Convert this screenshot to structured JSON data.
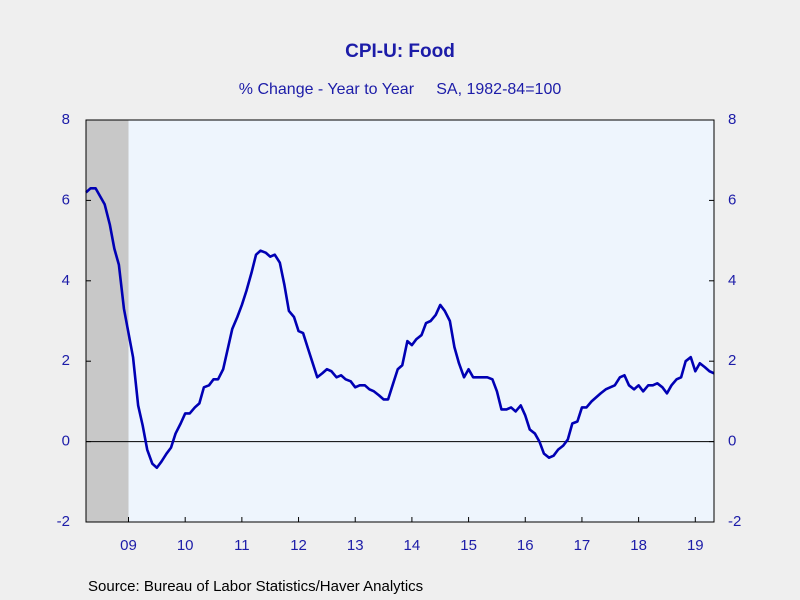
{
  "chart_data": {
    "type": "line",
    "title": "CPI-U: Food",
    "subtitle": "% Change - Year to Year     SA, 1982-84=100",
    "source": "Source:  Bureau of Labor Statistics/Haver Analytics",
    "x": [
      2008.75,
      2008.83,
      2008.92,
      2009,
      2009.08,
      2009.17,
      2009.25,
      2009.33,
      2009.42,
      2009.5,
      2009.58,
      2009.67,
      2009.75,
      2009.83,
      2009.92,
      2010,
      2010.08,
      2010.17,
      2010.25,
      2010.33,
      2010.42,
      2010.5,
      2010.58,
      2010.67,
      2010.75,
      2010.83,
      2010.92,
      2011,
      2011.08,
      2011.17,
      2011.25,
      2011.33,
      2011.42,
      2011.5,
      2011.58,
      2011.67,
      2011.75,
      2011.83,
      2011.92,
      2012,
      2012.08,
      2012.17,
      2012.25,
      2012.33,
      2012.42,
      2012.5,
      2012.58,
      2012.67,
      2012.75,
      2012.83,
      2012.92,
      2013,
      2013.08,
      2013.17,
      2013.25,
      2013.33,
      2013.42,
      2013.5,
      2013.58,
      2013.67,
      2013.75,
      2013.83,
      2013.92,
      2014,
      2014.08,
      2014.17,
      2014.25,
      2014.33,
      2014.42,
      2014.5,
      2014.58,
      2014.67,
      2014.75,
      2014.83,
      2014.92,
      2015,
      2015.08,
      2015.17,
      2015.25,
      2015.33,
      2015.42,
      2015.5,
      2015.58,
      2015.67,
      2015.75,
      2015.83,
      2015.92,
      2016,
      2016.08,
      2016.17,
      2016.25,
      2016.33,
      2016.42,
      2016.5,
      2016.58,
      2016.67,
      2016.75,
      2016.83,
      2016.92,
      2017,
      2017.08,
      2017.17,
      2017.25,
      2017.33,
      2017.42,
      2017.5,
      2017.58,
      2017.67,
      2017.75,
      2017.83,
      2017.92,
      2018,
      2018.08,
      2018.17,
      2018.25,
      2018.33,
      2018.42,
      2018.5,
      2018.58,
      2018.67,
      2018.75,
      2018.83,
      2018.92,
      2019,
      2019.08,
      2019.17,
      2019.25,
      2019.33,
      2019.42,
      2019.5,
      2019.58,
      2019.67,
      2019.75,
      2019.83
    ],
    "series": [
      {
        "color": "#0000b4",
        "values": [
          6.2,
          6.3,
          6.3,
          6.1,
          5.9,
          5.4,
          4.8,
          4.4,
          3.3,
          2.7,
          2.1,
          0.9,
          0.4,
          -0.2,
          -0.55,
          -0.65,
          -0.5,
          -0.3,
          -0.15,
          0.2,
          0.45,
          0.7,
          0.7,
          0.85,
          0.95,
          1.35,
          1.4,
          1.55,
          1.55,
          1.8,
          2.3,
          2.8,
          3.1,
          3.4,
          3.75,
          4.2,
          4.65,
          4.75,
          4.7,
          4.6,
          4.65,
          4.45,
          3.9,
          3.25,
          3.1,
          2.75,
          2.7,
          2.3,
          1.95,
          1.6,
          1.7,
          1.8,
          1.75,
          1.6,
          1.65,
          1.55,
          1.5,
          1.35,
          1.4,
          1.4,
          1.3,
          1.25,
          1.15,
          1.05,
          1.05,
          1.45,
          1.8,
          1.9,
          2.5,
          2.4,
          2.55,
          2.65,
          2.95,
          3.0,
          3.15,
          3.4,
          3.25,
          3.0,
          2.35,
          1.95,
          1.6,
          1.8,
          1.6,
          1.6,
          1.6,
          1.6,
          1.55,
          1.25,
          0.8,
          0.8,
          0.85,
          0.75,
          0.9,
          0.65,
          0.3,
          0.2,
          0.0,
          -0.3,
          -0.4,
          -0.35,
          -0.2,
          -0.1,
          0.05,
          0.45,
          0.5,
          0.85,
          0.85,
          1.0,
          1.1,
          1.2,
          1.3,
          1.35,
          1.4,
          1.6,
          1.65,
          1.4,
          1.3,
          1.4,
          1.25,
          1.4,
          1.4,
          1.45,
          1.35,
          1.2,
          1.4,
          1.55,
          1.6,
          2.0,
          2.1,
          1.75,
          1.95,
          1.85,
          1.75,
          1.7
        ]
      }
    ],
    "xlim": [
      2008.75,
      2019.83
    ],
    "xticks": [
      {
        "value": 2009.5,
        "label": "09"
      },
      {
        "value": 2010.5,
        "label": "10"
      },
      {
        "value": 2011.5,
        "label": "11"
      },
      {
        "value": 2012.5,
        "label": "12"
      },
      {
        "value": 2013.5,
        "label": "13"
      },
      {
        "value": 2014.5,
        "label": "14"
      },
      {
        "value": 2015.5,
        "label": "15"
      },
      {
        "value": 2016.5,
        "label": "16"
      },
      {
        "value": 2017.5,
        "label": "17"
      },
      {
        "value": 2018.5,
        "label": "18"
      },
      {
        "value": 2019.5,
        "label": "19"
      }
    ],
    "ylim": [
      -2,
      8
    ],
    "yticks": [
      -2,
      0,
      2,
      4,
      6,
      8
    ],
    "y2lim": [
      -2,
      8
    ],
    "y2ticks": [
      -2,
      0,
      2,
      4,
      6,
      8
    ],
    "recession": [
      2008.75,
      2009.5
    ]
  }
}
